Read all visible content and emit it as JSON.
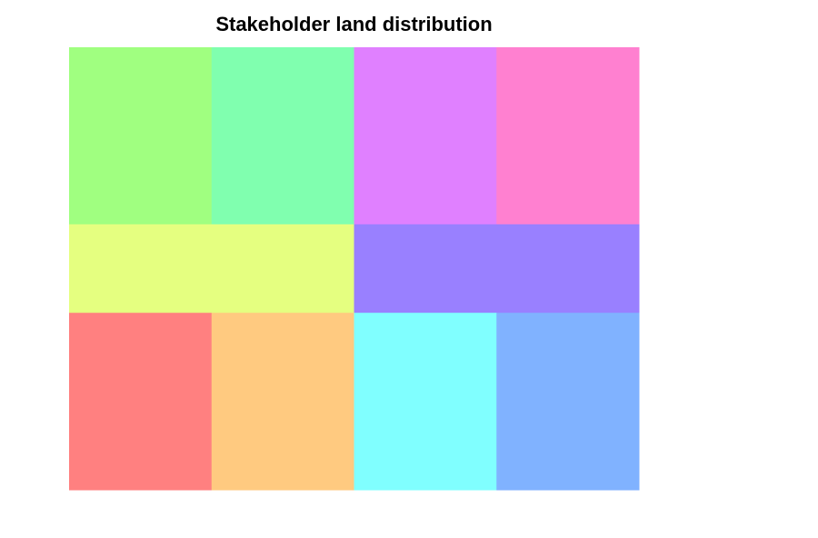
{
  "chart_data": {
    "type": "heatmap",
    "title": "Stakeholder land distribution",
    "xlabel": "",
    "ylabel": "",
    "legend": "none",
    "grid": false,
    "rows": [
      {
        "share": 0.4,
        "cells": [
          {
            "share": 0.25,
            "color": "#a0ff80"
          },
          {
            "share": 0.25,
            "color": "#80ffaf"
          },
          {
            "share": 0.25,
            "color": "#e080ff"
          },
          {
            "share": 0.25,
            "color": "#ff80d0"
          }
        ]
      },
      {
        "share": 0.2,
        "cells": [
          {
            "share": 0.5,
            "color": "#e5ff80"
          },
          {
            "share": 0.5,
            "color": "#9980ff"
          }
        ]
      },
      {
        "share": 0.4,
        "cells": [
          {
            "share": 0.25,
            "color": "#ff8080"
          },
          {
            "share": 0.25,
            "color": "#ffca80"
          },
          {
            "share": 0.25,
            "color": "#80ffff"
          },
          {
            "share": 0.25,
            "color": "#80b2ff"
          }
        ]
      }
    ]
  }
}
